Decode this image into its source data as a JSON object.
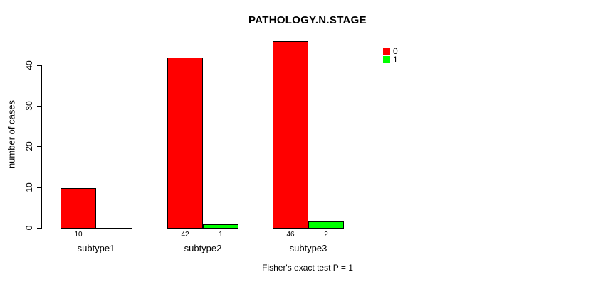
{
  "chart_data": {
    "type": "bar",
    "bar_orientation": "vertical",
    "grouping": "beside",
    "title": "PATHOLOGY.N.STAGE",
    "xlabel": "",
    "ylabel": "number of cases",
    "categories": [
      "subtype1",
      "subtype2",
      "subtype3"
    ],
    "series": [
      {
        "name": "0",
        "color": "#ff0000",
        "values": [
          10,
          42,
          46
        ]
      },
      {
        "name": "1",
        "color": "#00ff00",
        "values": [
          0,
          1,
          2
        ]
      }
    ],
    "yticks": [
      "0",
      "10",
      "20",
      "30",
      "40"
    ],
    "ytick_values": [
      0,
      10,
      20,
      30,
      40
    ],
    "ylim": [
      0,
      46
    ],
    "grid": false,
    "legend": {
      "position": "top-right",
      "entries": [
        {
          "label": "0",
          "color": "#ff0000"
        },
        {
          "label": "1",
          "color": "#00ff00"
        }
      ]
    },
    "annotation": "Fisher's exact test P = 1",
    "colors": {
      "series0": "#ff0000",
      "series1": "#00ff00",
      "axis": "#000000",
      "background": "#ffffff"
    }
  }
}
